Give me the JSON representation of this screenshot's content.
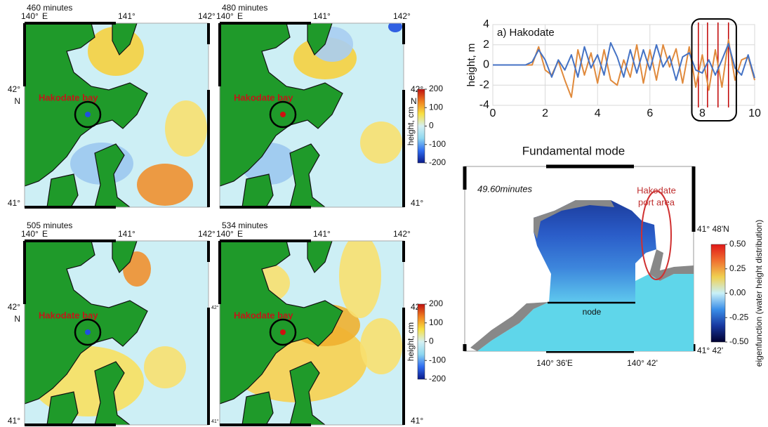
{
  "chart_data": [
    {
      "type": "line",
      "title": "a) Hakodate",
      "ylabel": "height, m",
      "x": [
        0,
        0.25,
        0.5,
        0.75,
        1,
        1.25,
        1.5,
        1.75,
        2,
        2.25,
        2.5,
        2.75,
        3,
        3.25,
        3.5,
        3.75,
        4,
        4.25,
        4.5,
        4.75,
        5,
        5.25,
        5.5,
        5.75,
        6,
        6.25,
        6.5,
        6.75,
        7,
        7.25,
        7.5,
        7.75,
        8,
        8.25,
        8.5,
        8.75,
        9,
        9.25,
        9.5,
        9.75,
        10
      ],
      "series": [
        {
          "color": "#e08a3c",
          "values": [
            0,
            0,
            0,
            0,
            0,
            0,
            0,
            1.8,
            -0.5,
            -1,
            0.4,
            -1.5,
            -3.2,
            1.5,
            -1,
            1.2,
            -1.8,
            1.5,
            -1.5,
            -2,
            0.5,
            -1.2,
            2,
            -1.8,
            1.5,
            -1.5,
            2,
            -0.2,
            1.6,
            -1.8,
            1.8,
            -2.2,
            1,
            -2.5,
            1.5,
            -2.2,
            2.5,
            -1.5,
            0.5,
            0.8,
            -1.5
          ]
        },
        {
          "color": "#4472c4",
          "values": [
            0,
            0,
            0,
            0,
            0,
            0,
            0.3,
            1.5,
            0.5,
            -1.2,
            0.5,
            -0.5,
            1,
            -1.2,
            1.8,
            -0.3,
            1,
            -1,
            2.2,
            0.8,
            -1.2,
            1.5,
            -0.8,
            1.5,
            -0.5,
            2,
            -0.2,
            0.9,
            -1.5,
            0.8,
            1.2,
            -0.5,
            -0.8,
            0.5,
            -1,
            0.5,
            2.1,
            -0.3,
            -1,
            1,
            -1.3
          ]
        }
      ],
      "xlim": [
        0,
        10
      ],
      "ylim": [
        -4,
        4
      ],
      "xticks": [
        0,
        2,
        4,
        6,
        8,
        10
      ],
      "yticks": [
        -4,
        -2,
        0,
        2,
        4
      ],
      "grid": true,
      "highlight_box": [
        7.6,
        9.3
      ],
      "marker_lines": [
        7.85,
        8.2,
        8.6,
        9.0
      ],
      "marker_color": "#c00000"
    },
    {
      "type": "colorbar",
      "label": "height, cm",
      "ylim": [
        -200,
        200
      ],
      "yticks": [
        200,
        100,
        0,
        -100,
        -200
      ],
      "colors": [
        "#0a1a8a",
        "#2f6cf0",
        "#8fd8f0",
        "#d4f0f2",
        "#f8e040",
        "#f08020",
        "#c01010"
      ]
    },
    {
      "type": "colorbar",
      "label": "height, cm",
      "ylim": [
        -200,
        200
      ],
      "yticks": [
        200,
        100,
        0,
        -100,
        -200
      ],
      "colors": [
        "#0a1a8a",
        "#2f6cf0",
        "#8fd8f0",
        "#d4f0f2",
        "#f8e040",
        "#f08020",
        "#c01010"
      ]
    },
    {
      "type": "colorbar",
      "label": "eigenfunction (water height distribution)",
      "ylim": [
        -0.5,
        0.5
      ],
      "yticks": [
        {
          "value": 0.5,
          "label": "0.50"
        },
        {
          "value": 0.25,
          "label": "0.25"
        },
        {
          "value": 0,
          "label": "0.00"
        },
        {
          "value": -0.25,
          "label": "-0.25"
        },
        {
          "value": -0.5,
          "label": "-0.50"
        }
      ],
      "colors": [
        "#000030",
        "#1838a0",
        "#3a8ee8",
        "#c8f0f8",
        "#f0d050",
        "#f07030",
        "#e01818"
      ]
    }
  ],
  "maps": [
    {
      "title": "460 minutes",
      "top_labels": [
        "140°",
        "E",
        "141°",
        "142°"
      ],
      "left_labels": [
        "42°",
        "N",
        "41°"
      ],
      "bay_label": "Hakodate bay"
    },
    {
      "title": "480 minutes",
      "top_labels": [
        "140°",
        "E",
        "141°",
        "142°"
      ],
      "right_labels": [
        "42°",
        "N",
        "41°"
      ],
      "bay_label": "Hakodate bay"
    },
    {
      "title": "505 minutes",
      "top_labels": [
        "140°",
        "E",
        "141°",
        "142°"
      ],
      "left_labels": [
        "42°",
        "N",
        "41°"
      ],
      "right_labels": [
        "42°",
        "41°"
      ],
      "bay_label": "Hakodate bay"
    },
    {
      "title": "534 minutes",
      "top_labels": [
        "140°",
        "E",
        "141°",
        "142°"
      ],
      "right_labels": [
        "42°",
        "41°"
      ],
      "bay_label": "Hakodate bay"
    }
  ],
  "mode": {
    "title": "Fundamental mode",
    "time_label": "49.60minutes",
    "port_label": [
      "Hakodate",
      "port area"
    ],
    "node_label": "node",
    "x_labels": [
      "140° 36'E",
      "140° 42'"
    ],
    "y_labels": [
      "41° 48'N",
      "41° 42'"
    ]
  }
}
